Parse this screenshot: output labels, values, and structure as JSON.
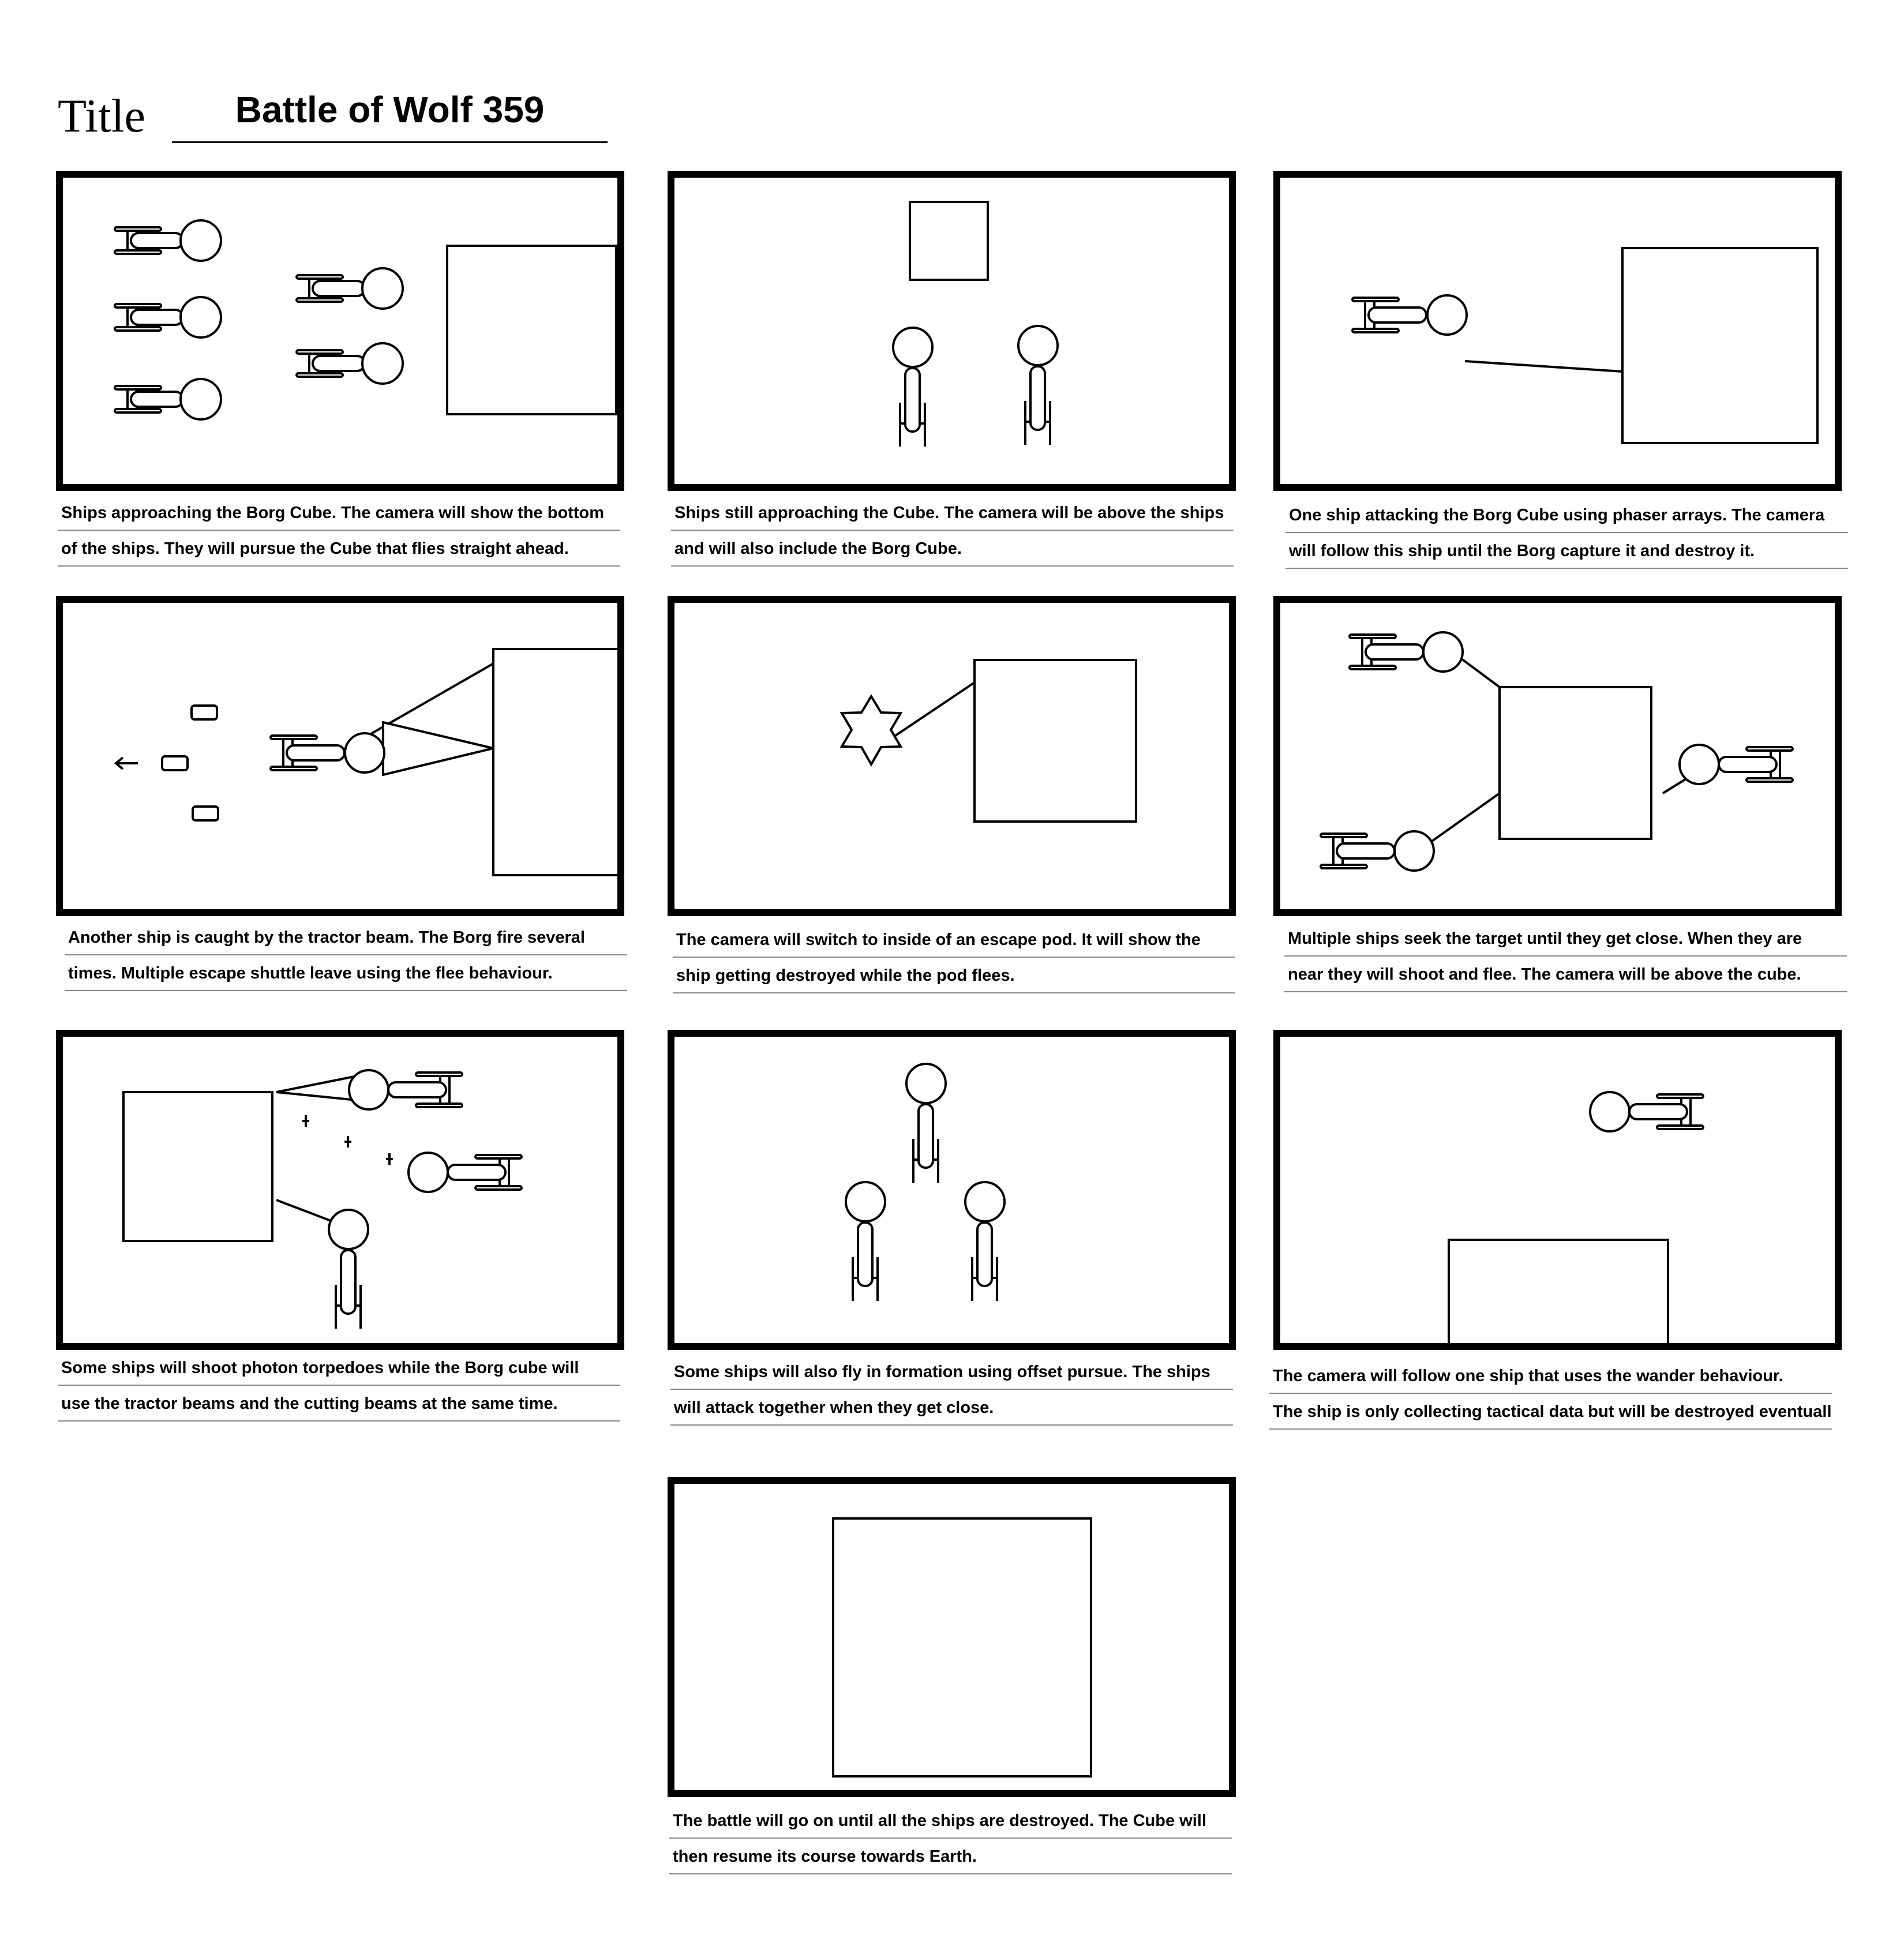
{
  "title": {
    "label": "Title",
    "value": "Battle of Wolf 359"
  },
  "panels": [
    {
      "caption": [
        "Ships approaching the Borg Cube. The camera will show the bottom",
        "of the ships.  They will pursue the Cube that  flies  straight ahead."
      ]
    },
    {
      "caption": [
        "Ships still approaching the Cube. The camera will be above the ships",
        "and will also include the Borg Cube."
      ]
    },
    {
      "caption": [
        "One ship attacking the Borg Cube using phaser arrays.  The camera",
        "will follow this ship until the Borg capture it and destroy it."
      ]
    },
    {
      "caption": [
        "Another ship is caught by the tractor beam. The Borg fire several",
        "times. Multiple escape shuttle leave using the flee behaviour."
      ]
    },
    {
      "caption": [
        "The camera will switch to inside of an escape pod. It will show the",
        "ship getting destroyed while the pod flees."
      ]
    },
    {
      "caption": [
        "Multiple ships seek the target until they get close. When they are",
        "near they will shoot and flee. The camera will be above the cube."
      ]
    },
    {
      "caption": [
        "Some ships will shoot photon torpedoes while the Borg cube will",
        "use the tractor beams and the cutting beams at the same time."
      ]
    },
    {
      "caption": [
        "Some ships will also fly in formation using offset pursue.  The ships",
        "will attack together when they get close."
      ]
    },
    {
      "caption": [
        "The camera will follow one ship that uses the wander behaviour.",
        "The ship is only collecting tactical data but will be destroyed eventually."
      ]
    },
    {
      "caption": [
        "The battle will go on until  all the ships are destroyed. The Cube will",
        "then resume its course towards Earth."
      ]
    }
  ]
}
